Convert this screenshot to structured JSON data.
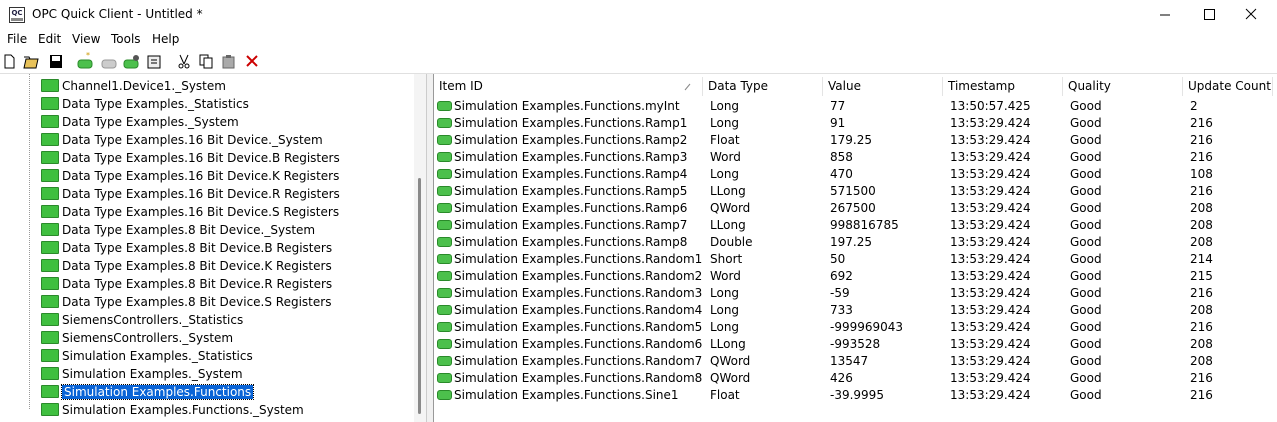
{
  "window": {
    "title": "OPC Quick Client - Untitled *"
  },
  "menu": [
    "File",
    "Edit",
    "View",
    "Tools",
    "Help"
  ],
  "tree": {
    "selected": 17,
    "items": [
      "Channel1.Device1._System",
      "Data Type Examples._Statistics",
      "Data Type Examples._System",
      "Data Type Examples.16 Bit Device._System",
      "Data Type Examples.16 Bit Device.B Registers",
      "Data Type Examples.16 Bit Device.K Registers",
      "Data Type Examples.16 Bit Device.R Registers",
      "Data Type Examples.16 Bit Device.S Registers",
      "Data Type Examples.8 Bit Device._System",
      "Data Type Examples.8 Bit Device.B Registers",
      "Data Type Examples.8 Bit Device.K Registers",
      "Data Type Examples.8 Bit Device.R Registers",
      "Data Type Examples.8 Bit Device.S Registers",
      "SiemensControllers._Statistics",
      "SiemensControllers._System",
      "Simulation Examples._Statistics",
      "Simulation Examples._System",
      "Simulation Examples.Functions",
      "Simulation Examples.Functions._System"
    ]
  },
  "table": {
    "columns": [
      "Item ID",
      "Data Type",
      "Value",
      "Timestamp",
      "Quality",
      "Update Count"
    ],
    "rows": [
      [
        "Simulation Examples.Functions.myInt",
        "Long",
        "77",
        "13:50:57.425",
        "Good",
        "2"
      ],
      [
        "Simulation Examples.Functions.Ramp1",
        "Long",
        "91",
        "13:53:29.424",
        "Good",
        "216"
      ],
      [
        "Simulation Examples.Functions.Ramp2",
        "Float",
        "179.25",
        "13:53:29.424",
        "Good",
        "216"
      ],
      [
        "Simulation Examples.Functions.Ramp3",
        "Word",
        "858",
        "13:53:29.424",
        "Good",
        "216"
      ],
      [
        "Simulation Examples.Functions.Ramp4",
        "Long",
        "470",
        "13:53:29.424",
        "Good",
        "108"
      ],
      [
        "Simulation Examples.Functions.Ramp5",
        "LLong",
        "571500",
        "13:53:29.424",
        "Good",
        "216"
      ],
      [
        "Simulation Examples.Functions.Ramp6",
        "QWord",
        "267500",
        "13:53:29.424",
        "Good",
        "208"
      ],
      [
        "Simulation Examples.Functions.Ramp7",
        "LLong",
        "998816785",
        "13:53:29.424",
        "Good",
        "208"
      ],
      [
        "Simulation Examples.Functions.Ramp8",
        "Double",
        "197.25",
        "13:53:29.424",
        "Good",
        "208"
      ],
      [
        "Simulation Examples.Functions.Random1",
        "Short",
        "50",
        "13:53:29.424",
        "Good",
        "214"
      ],
      [
        "Simulation Examples.Functions.Random2",
        "Word",
        "692",
        "13:53:29.424",
        "Good",
        "215"
      ],
      [
        "Simulation Examples.Functions.Random3",
        "Long",
        "-59",
        "13:53:29.424",
        "Good",
        "216"
      ],
      [
        "Simulation Examples.Functions.Random4",
        "Long",
        "733",
        "13:53:29.424",
        "Good",
        "208"
      ],
      [
        "Simulation Examples.Functions.Random5",
        "Long",
        "-999969043",
        "13:53:29.424",
        "Good",
        "216"
      ],
      [
        "Simulation Examples.Functions.Random6",
        "LLong",
        "-993528",
        "13:53:29.424",
        "Good",
        "208"
      ],
      [
        "Simulation Examples.Functions.Random7",
        "QWord",
        "13547",
        "13:53:29.424",
        "Good",
        "208"
      ],
      [
        "Simulation Examples.Functions.Random8",
        "QWord",
        "426",
        "13:53:29.424",
        "Good",
        "216"
      ],
      [
        "Simulation Examples.Functions.Sine1",
        "Float",
        "-39.9995",
        "13:53:29.424",
        "Good",
        "216"
      ]
    ]
  }
}
